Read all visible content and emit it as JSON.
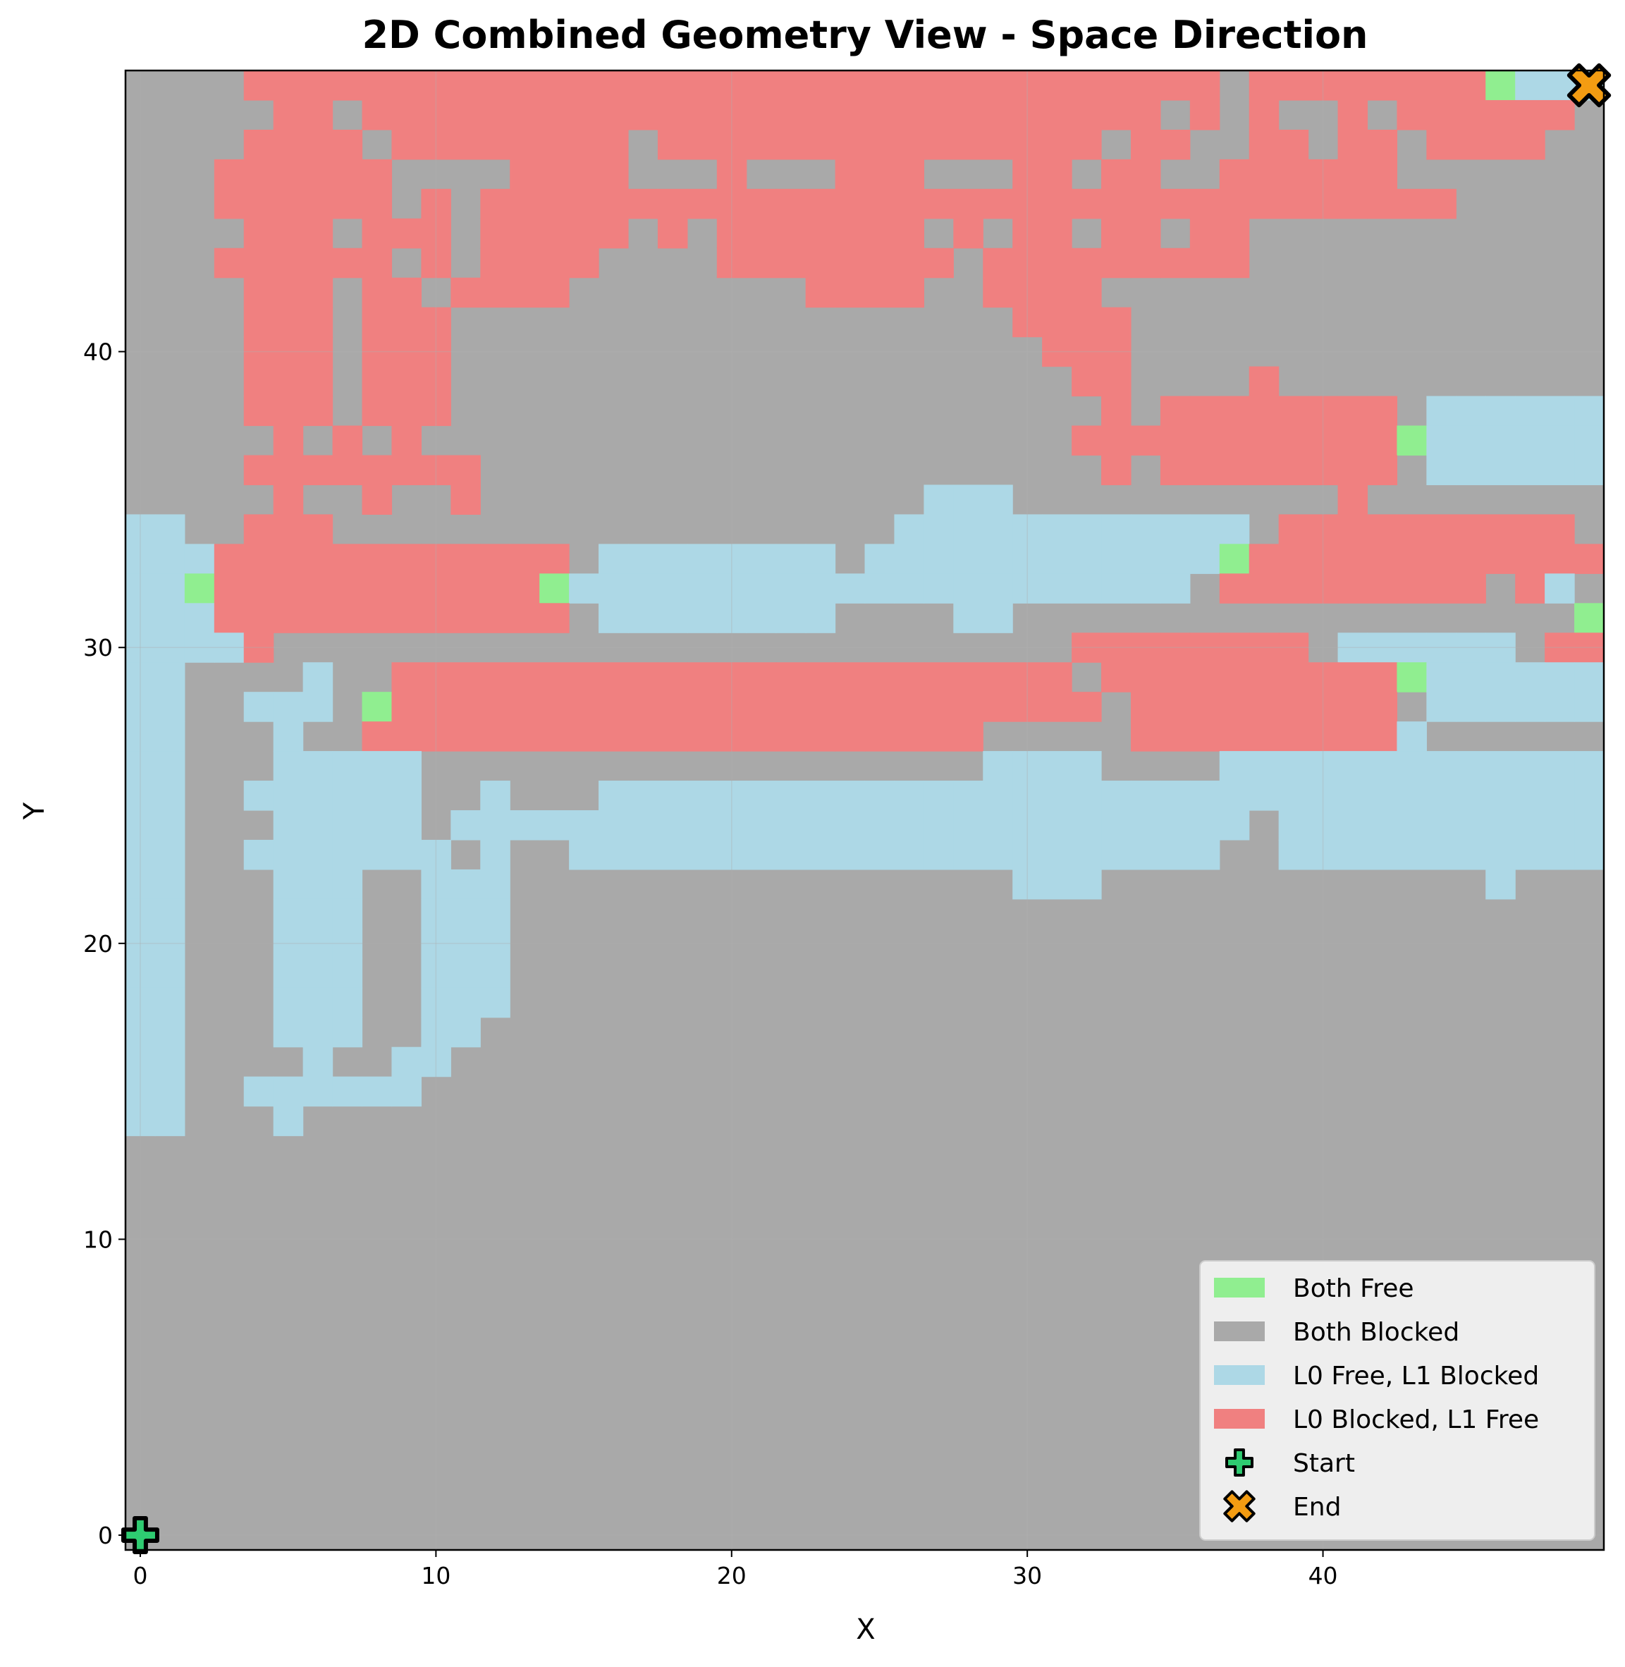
{
  "chart_data": {
    "type": "heatmap",
    "title": "2D Combined Geometry View - Space Direction",
    "xlabel": "X",
    "ylabel": "Y",
    "xlim": [
      -0.5,
      49.5
    ],
    "ylim": [
      -0.5,
      49.5
    ],
    "xticks": [
      0,
      10,
      20,
      30,
      40
    ],
    "yticks": [
      0,
      10,
      20,
      30,
      40
    ],
    "grid": true,
    "legend_position": "lower right",
    "categories": [
      {
        "code": "G",
        "label": "Both Free",
        "color": "#90ee90"
      },
      {
        "code": "B",
        "label": "Both Blocked",
        "color": "#a9a9a9"
      },
      {
        "code": "F",
        "label": "L0 Free, L1 Blocked",
        "color": "#add8e6"
      },
      {
        "code": "R",
        "label": "L0 Blocked, L1 Free",
        "color": "#f08080"
      }
    ],
    "markers": [
      {
        "label": "Start",
        "x": 0,
        "y": 0,
        "color": "#2ecc71",
        "symbol": "plus"
      },
      {
        "label": "End",
        "x": 49,
        "y": 49,
        "color": "#f39c12",
        "symbol": "x"
      }
    ],
    "grid_rows_top_to_bottom": [
      "BBBBRRRRRRRRRRRRRRRRRRRRRRRRRRRRRRRRRBRRRRRRRRGFFFFFFFF",
      "BBBBBRRBRRRRRRRRRRRRRRRRRRRRRRRRRRRBRBRBBRBRRRRRRBBFFFFF",
      "BBBBRRRRBRRRRRRRRBRRRRRRRRRRRRRRRBRRBBRRBRRBRRRRBBBBFFFF",
      "BBBRRRRRRBBBBRRRRBBBRBBBRRRBBBRRBRRBBRRRRRRBBBBBBBBBFFF",
      "BBBRRRRRRBRBRRRRRRRRRRRRRRRRRRRRRRRRRRRRRRRRRBBBBBBBFFF",
      "BBBBRRRBRRRBRRRRRBRBRRRRRRRBRBRRBRRBRRBBBBBBBBBBBBBBFFF",
      "BBBRRRRRRBRBRRRRBBBBRRRRRRRRBRRRRRRRRRBBBBBBBBBBBBBBFFF",
      "BBBBRRRBRRBRRRRBBBBBBBBRRRRBBRRRRBBBBBBBBBBBBBBBBBBBBBB",
      "BBBBRRRBRRRBBBBBBBBBBBBBBBBBBBRRRRBBBBBBBBBBBBBBBBBBBBB",
      "BBBBRRRBRRRBBBBBBBBBBBBBBBBBBBBRRRBBBBBBBBBBBBBBBBBBBBB",
      "BBBBRRRBRRRBBBBBBBBBBBBBBBBBBBBBRRBBBBRBBBBBBBBBBBBBBBB",
      "BBBBRRRBRRRBBBBBBBBBBBBBBBBBBBBBBRBRRRRRRRRBFFFFFFFBFF",
      "BBBBBRBRBRBBBBBBBBBBBBBBBBBBBBBBRRRRRRRRRRRGFFFFFFFFFF",
      "BBBBRRRRRRRRBBBBBBBBBBBBBBBBBBBBBRBRRRRRRRRBFFFFFFFFBF",
      "BBBBBRBBRBBRBBBBBBBBBBBBBBBFFFBBBBBBBBBBBRBBBBBBBBBFFF",
      "FFBBRRRBBBBBBBBBBBBBBBBBBBFFFFFFFFFFFFBRRRRRRRRRRBF",
      "FFFRRRRRRRRRRRRBFFFFFFFFBFFFFFFFFFFFFGRRRRRRRRRRRRF",
      "FFGRRRRRRRRRRRGFFFFFFFFFFFFFFFFFFFFFBRRRRRRRRRBRF",
      "FFFRRRRRRRRRRRRBFFFFFFFFBBBBFFBBBBBBBBBBBBBBBBBBBGRF",
      "FFFFRBBBBBBBBBBBBBBBBBBBBBBBBBBBRRRRRRRRBFFFFFFBRRRRF",
      "FFBBBBFBBRRRRRRRRRRRRRRRRRRRRRRRBRRRRRRRRRRGFFFFFFGRRRF",
      "FFBBFFFBGRRRRRRRRRRRRRRRRRRRRRRRRBRRRRRRRRRBFFFFFFBRRBBF",
      "FFBBBFBBRRRRRRRRRRRRRRRRRRRRRBBBBBRRRRRRRRRFBBBBBBBBFBBBFF",
      "FFBBBFFFFFBBBBBBBBBBBBBBBBBBBFFFFBBBBFFFFFFFFFFFFFFFFFFBF",
      "FFBBFFFFFFBBFBBBFFFFFFFFFFFFFFFFFFFFFFFFFFFFFFFFFFFFFFFF",
      "FFBBBFFFFFBFFFFFFFFFFFFFFFFFFFFFFFFFFFBFFFFFFFFFFFFFFFBF",
      "FFBBFFFFFFFBFBBFFFFFFFFFFFFFFFFFFFFFFBBFFFFFFFFFFFFBBBF",
      "FFBBBFFFBBFFFBBBBBBBBBBBBBBBBBFFFBBBBBBBBBBBBBFBBBBFBBBBF",
      "FFBBBFFFBBFFFBBBBBBBBBBBBBBBBBBBBBBBBBBBBBBBBBBBBBBBBBF",
      "FFBBBFFFBBFFFBBBBBBBBBBBBBBBBBBBBBBBBBBBBBBBBBBBBBBBBBF",
      "FFBBBFFFBBFFFBBBBBBBBBBBBBBBBBBBBBBBBBBBBBBBBBBBBBBBBBF",
      "FFBBBFFFBBFFFBBBBBBBBBBBBBBBBBBBBBBBBBBBBBBBBBBBBBBBBBF",
      "FFBBBFFFBBFFBBBBBBBBBBBBBBBBBBBBBBBBBBBBBBBBBBBBBBBBBBF",
      "FFBBBBFBBFFBBBBBBBBBBBBBBBBBBBBBBBBBBBBBBBBBBBBBBBBBBBB",
      "FFBBFFFFFFBBBBBBBBBBBBBBBBBBBBBBBBBBBBBBBBBBBBBBBBBBBBB",
      "FFBBBFBBBBBBBBBBBBBBBBBBBBBBBBBBBBBBBBBBBBBBBBBBBBBBBBB"
    ]
  }
}
